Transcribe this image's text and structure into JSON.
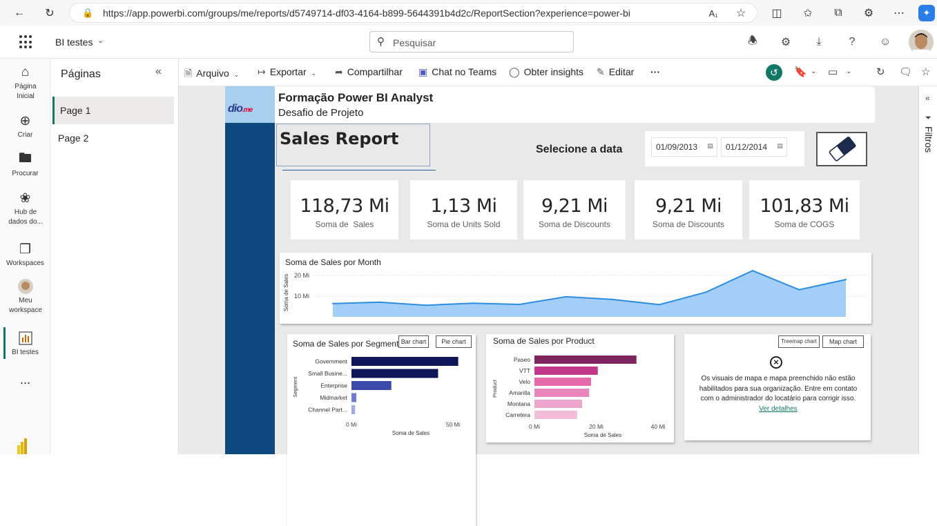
{
  "browser": {
    "url": "https://app.powerbi.com/groups/me/reports/d5749714-df03-4164-b899-5644391b4d2c/ReportSection?experience=power-bi"
  },
  "header": {
    "workspace": "BI testes",
    "search_placeholder": "Pesquisar"
  },
  "nav": {
    "home": "Página Inicial",
    "create": "Criar",
    "browse": "Procurar",
    "hub": "Hub de dados do...",
    "workspaces": "Workspaces",
    "my_workspace": "Meu workspace",
    "bi_testes": "BI testes",
    "more": "..."
  },
  "pages": {
    "title": "Páginas",
    "items": [
      "Page 1",
      "Page 2"
    ]
  },
  "toolbar": {
    "arquivo": "Arquivo",
    "exportar": "Exportar",
    "compartilhar": "Compartilhar",
    "teams": "Chat no Teams",
    "insights": "Obter insights",
    "editar": "Editar",
    "more": "···"
  },
  "report": {
    "logo_a": "dio",
    "logo_b": ".me",
    "title": "Formação Power BI Analyst",
    "subtitle": "Desafio de Projeto",
    "sales_report": "Sales Report",
    "select_date": "Selecione a data",
    "date_from": "01/09/2013",
    "date_to": "01/12/2014",
    "kpis": [
      {
        "value": "118,73 Mi",
        "label": "Soma de  Sales"
      },
      {
        "value": "1,13 Mi",
        "label": "Soma de Units Sold"
      },
      {
        "value": "9,21 Mi",
        "label": "Soma de Discounts"
      },
      {
        "value": "9,21 Mi",
        "label": "Soma de Discounts"
      },
      {
        "value": "101,83 Mi",
        "label": "Soma de COGS"
      }
    ],
    "segment_title": "Soma de Sales por Segment",
    "bar_chart_btn": "Bar chart",
    "pie_chart_btn": "Pie chart",
    "product_title": "Soma de Sales por Product",
    "treemap_btn": "Treemap chart",
    "map_btn": "Map chart",
    "map_message": "Os visuais de mapa e mapa preenchido não estão habilitados para sua organização. Entre em contato com o administrador do locatário para corrigir isso.",
    "map_link": "Ver detalhes"
  },
  "filters": {
    "label": "Filtros"
  },
  "colors": {
    "accent": "#117865",
    "band": "#0e4a80",
    "line": "#2b8de0",
    "area": "#a3cef8"
  },
  "chart_data": [
    {
      "type": "area",
      "title": "Soma de Sales por Month",
      "ylabel": "Soma de Sales",
      "yticks": [
        {
          "value": 10,
          "label": "10 Mi"
        },
        {
          "value": 20,
          "label": "20 Mi"
        }
      ],
      "ylim": [
        0,
        25
      ],
      "values": [
        6.4,
        7.1,
        5.6,
        6.6,
        6.0,
        9.7,
        8.4,
        5.9,
        11.9,
        22.3,
        13.1,
        18.0
      ],
      "grid": true
    },
    {
      "type": "bar",
      "title": "Soma de Sales por Segment",
      "ylabel": "Segment",
      "xlabel": "Soma de Sales",
      "categories": [
        "Government",
        "Small Busine...",
        "Enterprise",
        "Midmarket",
        "Channel Part..."
      ],
      "values": [
        52.5,
        42.6,
        19.6,
        2.4,
        1.8
      ],
      "xticks": [
        {
          "value": 0,
          "label": "0 Mi"
        },
        {
          "value": 50,
          "label": "50 Mi"
        }
      ],
      "xlim": [
        0,
        55
      ],
      "colors": [
        "#0f1559",
        "#0f1559",
        "#3c4aaa",
        "#6e7dd0",
        "#a3acdf"
      ]
    },
    {
      "type": "bar",
      "title": "Soma de Sales por Product",
      "ylabel": "Product",
      "xlabel": "Soma de Sales",
      "categories": [
        "Paseo",
        "VTT",
        "Velo",
        "Amarilla",
        "Montana",
        "Carretera"
      ],
      "values": [
        33.0,
        20.5,
        18.3,
        17.7,
        15.4,
        13.8
      ],
      "xticks": [
        {
          "value": 0,
          "label": "0 Mi"
        },
        {
          "value": 20,
          "label": "20 Mi"
        },
        {
          "value": 40,
          "label": "40 Mi"
        }
      ],
      "xlim": [
        0,
        42
      ],
      "colors": [
        "#7e2560",
        "#c2388b",
        "#e46aa9",
        "#e986bb",
        "#eea5cb",
        "#f3bcd9"
      ]
    }
  ]
}
